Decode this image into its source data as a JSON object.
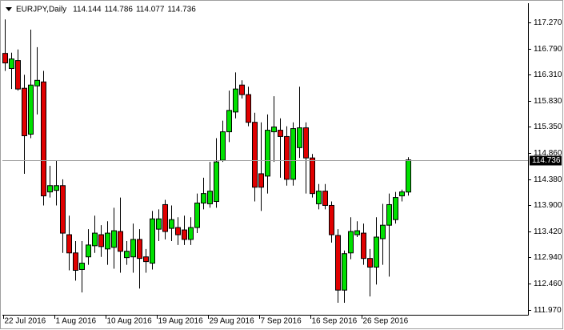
{
  "chart_data": {
    "type": "candlestick",
    "symbol": "EURJPY,Daily",
    "categories": [
      "22 Jul 2016",
      null,
      null,
      null,
      null,
      null,
      null,
      null,
      "1 Aug 2016",
      null,
      null,
      null,
      null,
      null,
      null,
      null,
      "10 Aug 2016",
      null,
      null,
      null,
      null,
      null,
      null,
      null,
      "19 Aug 2016",
      null,
      null,
      null,
      null,
      null,
      null,
      null,
      "29 Aug 2016",
      null,
      null,
      null,
      null,
      null,
      null,
      null,
      "7 Sep 2016",
      null,
      null,
      null,
      null,
      null,
      null,
      null,
      "16 Sep 2016",
      null,
      null,
      null,
      null,
      null,
      null,
      null,
      "26 Sep 2016",
      null,
      null,
      null,
      null,
      null,
      null,
      null
    ],
    "open": [
      116.701,
      116.423,
      116.569,
      116.058,
      115.211,
      116.102,
      116.175,
      114.146,
      114.175,
      114.262,
      113.357,
      113.021,
      112.715,
      112.948,
      113.153,
      113.357,
      113.094,
      113.124,
      113.416,
      112.934,
      112.948,
      113.27,
      112.948,
      112.832,
      113.459,
      113.912,
      113.474,
      113.489,
      113.445,
      113.27,
      113.489,
      113.941,
      113.927,
      113.97,
      114.73,
      115.255,
      115.62,
      116.117,
      115.941,
      115.43,
      114.481,
      114.438,
      115.255,
      115.284,
      115.168,
      114.379,
      114.963,
      115.328,
      114.773,
      113.927,
      114.16,
      113.897,
      113.343,
      112.335,
      113.021,
      113.357,
      113.386,
      112.919,
      112.759,
      113.284,
      113.532,
      113.635,
      114.073,
      114.144
    ],
    "high": [
      117.328,
      116.715,
      116.774,
      116.306,
      117.139,
      116.817,
      116.379,
      114.627,
      114.73,
      114.379,
      113.708,
      113.24,
      113.24,
      113.459,
      113.708,
      113.532,
      113.605,
      113.854,
      114.043,
      113.24,
      113.562,
      113.459,
      113.094,
      113.795,
      113.824,
      114.0,
      113.897,
      113.678,
      113.708,
      113.678,
      114.116,
      114.408,
      114.7,
      115.138,
      115.46,
      116.014,
      116.35,
      116.204,
      116.087,
      115.606,
      115.43,
      115.576,
      115.912,
      115.503,
      115.357,
      115.43,
      116.087,
      115.43,
      114.846,
      114.292,
      114.292,
      113.97,
      113.459,
      113.065,
      113.678,
      113.605,
      113.562,
      113.094,
      113.678,
      113.927,
      114.116,
      114.146,
      114.189,
      114.786
    ],
    "low": [
      116.379,
      116.044,
      116.014,
      114.481,
      115.138,
      115.576,
      113.897,
      114.043,
      113.897,
      113.021,
      112.7,
      112.51,
      112.291,
      112.802,
      113.021,
      112.948,
      112.802,
      112.729,
      112.656,
      112.802,
      112.656,
      112.364,
      112.656,
      112.715,
      113.24,
      113.27,
      113.24,
      113.167,
      113.167,
      113.167,
      113.386,
      113.824,
      113.854,
      113.854,
      114.7,
      115.065,
      115.503,
      115.868,
      115.357,
      113.97,
      113.795,
      114.116,
      114.7,
      114.408,
      114.262,
      114.262,
      114.773,
      114.116,
      114.043,
      113.824,
      113.824,
      113.211,
      112.102,
      112.102,
      112.905,
      113.313,
      112.802,
      112.218,
      112.437,
      112.802,
      112.583,
      113.562,
      113.97,
      114.077
    ],
    "close": [
      116.525,
      116.598,
      116.044,
      115.182,
      116.117,
      116.204,
      114.073,
      114.262,
      114.262,
      113.386,
      113.021,
      112.7,
      112.832,
      113.167,
      113.386,
      113.138,
      113.386,
      113.43,
      113.051,
      113.051,
      113.27,
      112.919,
      112.861,
      113.649,
      113.649,
      113.416,
      113.635,
      113.357,
      113.27,
      113.489,
      113.941,
      114.116,
      114.16,
      114.7,
      115.255,
      115.649,
      116.044,
      115.941,
      115.43,
      114.233,
      114.233,
      115.284,
      115.343,
      115.168,
      114.379,
      115.314,
      115.328,
      114.773,
      114.116,
      114.16,
      113.897,
      113.357,
      112.335,
      113.007,
      113.416,
      113.43,
      112.919,
      112.759,
      113.313,
      113.532,
      113.912,
      114.043,
      114.146,
      114.736
    ],
    "up_color": "#00e000",
    "down_color": "#e00000",
    "ylim": [
      111.88,
      117.42
    ],
    "yticks": [
      {
        "value": 111.97,
        "label": "111.970"
      },
      {
        "value": 112.46,
        "label": "112.460"
      },
      {
        "value": 112.94,
        "label": "112.940"
      },
      {
        "value": 113.42,
        "label": "113.420"
      },
      {
        "value": 113.9,
        "label": "113.900"
      },
      {
        "value": 114.38,
        "label": "114.380"
      },
      {
        "value": 114.86,
        "label": "114.860"
      },
      {
        "value": 115.35,
        "label": "115.350"
      },
      {
        "value": 115.83,
        "label": "115.830"
      },
      {
        "value": 116.31,
        "label": "116.310"
      },
      {
        "value": 116.79,
        "label": "116.790"
      },
      {
        "value": 117.27,
        "label": "117.270"
      }
    ],
    "grid": false
  }
}
